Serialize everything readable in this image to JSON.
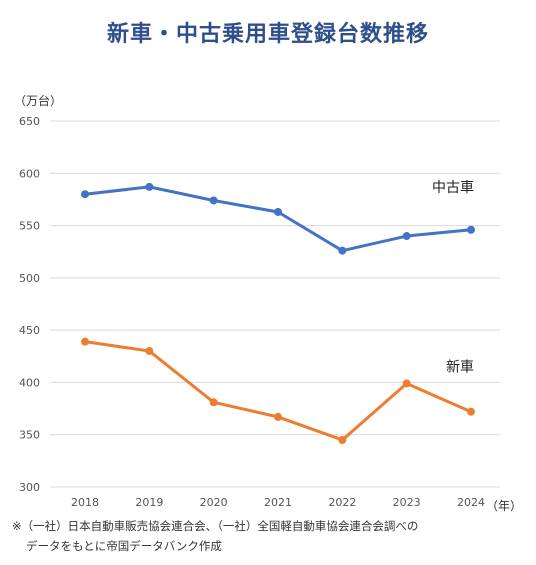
{
  "title": "新車・中古乗用車登録台数推移",
  "chart_data": {
    "type": "line",
    "title": "新車・中古乗用車登録台数推移",
    "ylabel": "（万台）",
    "xlabel": "（年）",
    "ylim": [
      300,
      650
    ],
    "yticks": [
      300,
      350,
      400,
      450,
      500,
      550,
      600,
      650
    ],
    "grid": true,
    "categories": [
      "2018",
      "2019",
      "2020",
      "2021",
      "2022",
      "2023",
      "2024"
    ],
    "series": [
      {
        "name": "中古車",
        "color": "#4472c4",
        "values": [
          580,
          587,
          574,
          563,
          526,
          540,
          546
        ]
      },
      {
        "name": "新車",
        "color": "#ed7d31",
        "values": [
          439,
          430,
          381,
          367,
          345,
          399,
          372
        ]
      }
    ]
  },
  "notes": [
    "※（一社）日本自動車販売協会連合会、（一社）全国軽自動車協会連合会調べの",
    "データをもとに帝国データバンク作成"
  ]
}
